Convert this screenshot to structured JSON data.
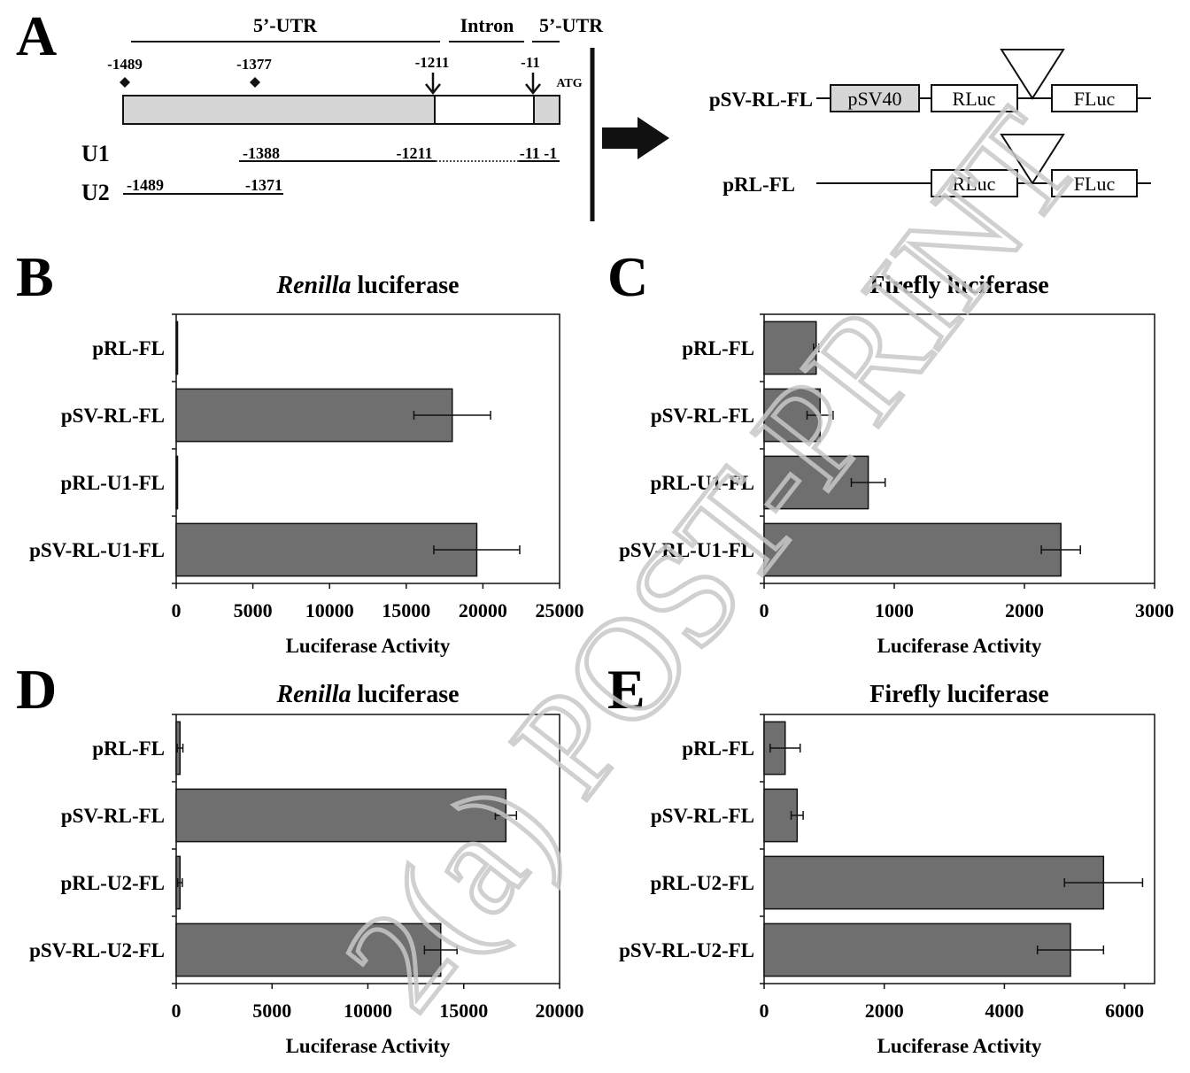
{
  "panel_letters": [
    "A",
    "B",
    "C",
    "D",
    "E"
  ],
  "panel_a": {
    "regions": [
      "5’-UTR",
      "Intron",
      "5’-UTR"
    ],
    "positions": [
      "-1489",
      "-1377",
      "-1211",
      "-11"
    ],
    "atg": "ATG",
    "u1": {
      "label": "U1",
      "start": "-1388",
      "mid": "-1211",
      "end": "-11 -1"
    },
    "u2": {
      "label": "U2",
      "start": "-1489",
      "end": "-1371"
    },
    "constructs": [
      {
        "name": "pSV-RL-FL",
        "boxes": [
          "pSV40",
          "RLuc",
          "FLuc"
        ]
      },
      {
        "name": "pRL-FL",
        "boxes": [
          "RLuc",
          "FLuc"
        ]
      }
    ]
  },
  "chart_data": [
    {
      "panel": "B",
      "type": "bar",
      "orientation": "horizontal",
      "title_italic": "Renilla",
      "title_rest": " luciferase",
      "xlabel": "Luciferase Activity",
      "categories": [
        "pRL-FL",
        "pSV-RL-FL",
        "pRL-U1-FL",
        "pSV-RL-U1-FL"
      ],
      "values": [
        0,
        18000,
        0,
        19600
      ],
      "errors": [
        0,
        2500,
        0,
        2800
      ],
      "xlim": [
        0,
        25000
      ],
      "xticks": [
        "0",
        "5000",
        "10000",
        "15000",
        "20000",
        "25000"
      ]
    },
    {
      "panel": "C",
      "type": "bar",
      "orientation": "horizontal",
      "title_italic": "",
      "title_rest": "Firefly luciferase",
      "xlabel": "Luciferase Activity",
      "categories": [
        "pRL-FL",
        "pSV-RL-FL",
        "pRL-U1-FL",
        "pSV-RL-U1-FL"
      ],
      "values": [
        400,
        430,
        800,
        2280
      ],
      "errors": [
        20,
        100,
        130,
        150
      ],
      "xlim": [
        0,
        3000
      ],
      "xticks": [
        "0",
        "1000",
        "2000",
        "3000"
      ]
    },
    {
      "panel": "D",
      "type": "bar",
      "orientation": "horizontal",
      "title_italic": "Renilla",
      "title_rest": " luciferase",
      "xlabel": "Luciferase Activity",
      "categories": [
        "pRL-FL",
        "pSV-RL-FL",
        "pRL-U2-FL",
        "pSV-RL-U2-FL"
      ],
      "values": [
        200,
        17200,
        200,
        13800
      ],
      "errors": [
        150,
        550,
        120,
        850
      ],
      "xlim": [
        0,
        20000
      ],
      "xticks": [
        "0",
        "5000",
        "10000",
        "15000",
        "20000"
      ]
    },
    {
      "panel": "E",
      "type": "bar",
      "orientation": "horizontal",
      "title_italic": "",
      "title_rest": "Firefly luciferase",
      "xlabel": "Luciferase Activity",
      "categories": [
        "pRL-FL",
        "pSV-RL-FL",
        "pRL-U2-FL",
        "pSV-RL-U2-FL"
      ],
      "values": [
        350,
        550,
        5650,
        5100
      ],
      "errors": [
        250,
        100,
        650,
        550
      ],
      "xlim": [
        0,
        6500
      ],
      "xticks": [
        "0",
        "2000",
        "4000",
        "6000"
      ]
    }
  ],
  "colors": {
    "bar": "#6f6f6f",
    "bar_stroke": "#111111",
    "gene_fill": "#d6d6d6",
    "watermark": "#c8c8c8"
  },
  "watermark": "2(a) POST-PRINT"
}
